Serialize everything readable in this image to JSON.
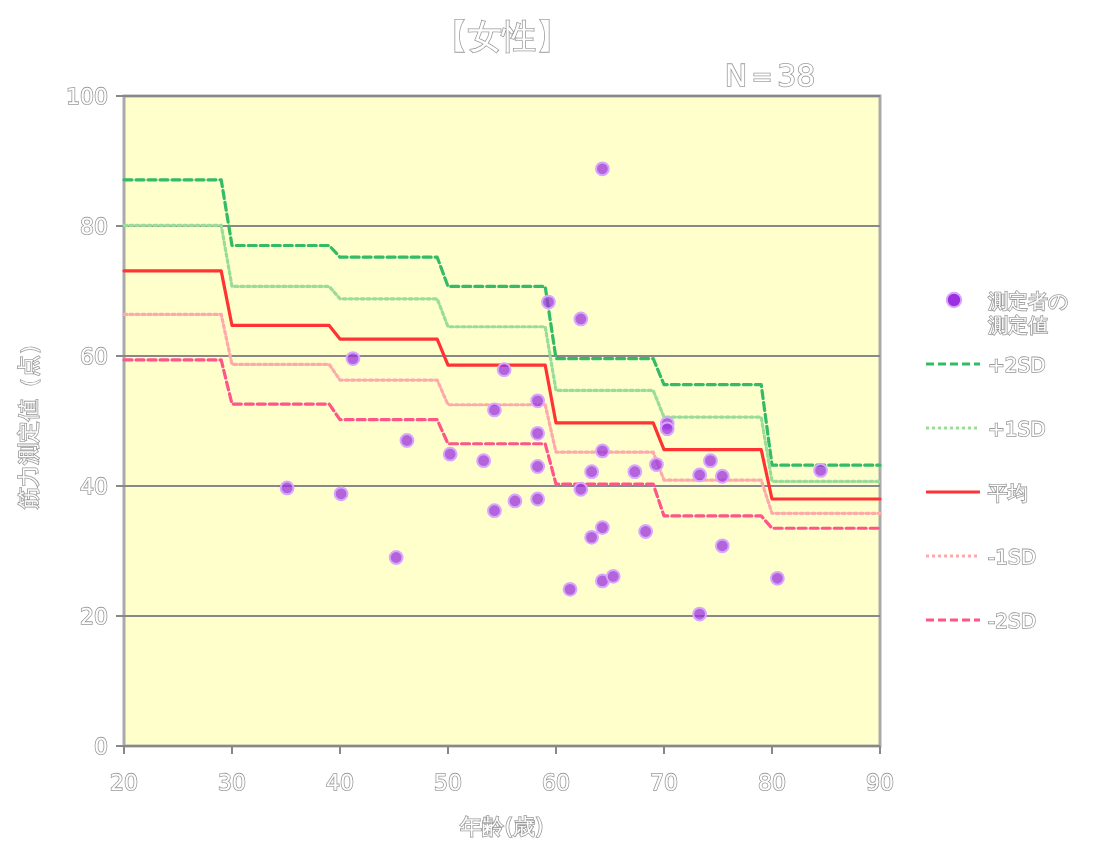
{
  "chart_data": {
    "type": "scatter",
    "title": "【女性】",
    "annotations": [
      "N＝38"
    ],
    "xlabel": "年齢(歳)",
    "ylabel": "筋力測定値（点）",
    "xlim": [
      20,
      90
    ],
    "ylim": [
      0,
      100
    ],
    "xticks": [
      20,
      30,
      40,
      50,
      60,
      70,
      80,
      90
    ],
    "yticks": [
      0,
      20,
      40,
      60,
      80,
      100
    ],
    "grid": "y",
    "legend": "right",
    "series": [
      {
        "name": "測定者の測定値",
        "type": "scatter",
        "marker": "circle",
        "color": "#9b30e0",
        "x": [
          35.1,
          40.1,
          41.2,
          45.2,
          46.2,
          50.2,
          53.3,
          54.3,
          54.3,
          55.2,
          56.2,
          58.3,
          58.3,
          58.3,
          58.3,
          59.3,
          62.3,
          62.3,
          63.3,
          64.3,
          64.3,
          63.3,
          64.3,
          61.3,
          64.3,
          65.3,
          67.3,
          68.3,
          69.3,
          70.3,
          70.3,
          73.3,
          74.3,
          75.4,
          75.4,
          73.3,
          80.5,
          84.5
        ],
        "values": [
          39.7,
          38.8,
          59.6,
          29.0,
          47.0,
          44.9,
          43.9,
          51.7,
          36.2,
          57.9,
          37.7,
          53.1,
          48.1,
          43.0,
          38.0,
          68.3,
          65.7,
          39.5,
          42.2,
          45.4,
          88.8,
          32.1,
          33.6,
          24.1,
          25.4,
          26.1,
          42.2,
          33.0,
          43.3,
          49.6,
          48.8,
          41.7,
          43.9,
          41.5,
          30.8,
          20.3,
          25.8,
          42.4
        ]
      },
      {
        "name": "+2SD",
        "type": "line",
        "line_style": "dashed",
        "color": "#33bb66",
        "x": [
          20,
          29,
          30,
          39,
          40,
          49,
          50,
          59,
          60,
          69,
          70,
          79,
          80,
          90
        ],
        "values": [
          87.1,
          87.1,
          77.0,
          77.0,
          75.2,
          75.2,
          70.7,
          70.7,
          59.6,
          59.6,
          55.6,
          55.6,
          43.2,
          43.2
        ]
      },
      {
        "name": "+1SD",
        "type": "line",
        "line_style": "dotted",
        "color": "#99dd99",
        "x": [
          20,
          29,
          30,
          39,
          40,
          49,
          50,
          59,
          60,
          69,
          70,
          79,
          80,
          90
        ],
        "values": [
          80.1,
          80.1,
          70.7,
          70.7,
          68.8,
          68.8,
          64.5,
          64.5,
          54.7,
          54.7,
          50.6,
          50.6,
          40.7,
          40.7
        ]
      },
      {
        "name": "平均",
        "type": "line",
        "line_style": "solid",
        "color": "#ff3333",
        "x": [
          20,
          29,
          30,
          39,
          40,
          49,
          50,
          59,
          60,
          69,
          70,
          79,
          80,
          90
        ],
        "values": [
          73.1,
          73.1,
          64.7,
          64.7,
          62.6,
          62.6,
          58.6,
          58.6,
          49.7,
          49.7,
          45.6,
          45.6,
          38.0,
          38.0
        ]
      },
      {
        "name": "-1SD",
        "type": "line",
        "line_style": "dotted",
        "color": "#ffaaaa",
        "x": [
          20,
          29,
          30,
          39,
          40,
          49,
          50,
          59,
          60,
          69,
          70,
          79,
          80,
          90
        ],
        "values": [
          66.4,
          66.4,
          58.7,
          58.7,
          56.3,
          56.3,
          52.5,
          52.5,
          45.2,
          45.2,
          40.9,
          40.9,
          35.8,
          35.8
        ]
      },
      {
        "name": "-2SD",
        "type": "line",
        "line_style": "dashed",
        "color": "#ff5588",
        "x": [
          20,
          29,
          30,
          39,
          40,
          49,
          50,
          59,
          60,
          69,
          70,
          79,
          80,
          90
        ],
        "values": [
          59.4,
          59.4,
          52.6,
          52.6,
          50.2,
          50.2,
          46.5,
          46.5,
          40.3,
          40.3,
          35.4,
          35.4,
          33.5,
          33.5
        ]
      }
    ]
  }
}
